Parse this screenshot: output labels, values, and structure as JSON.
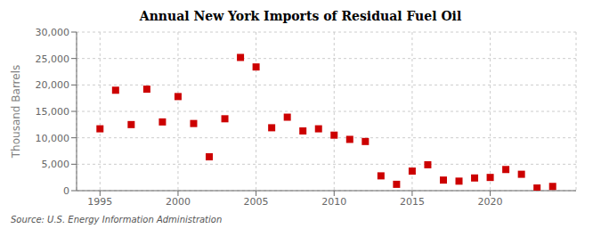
{
  "chart_data": {
    "type": "scatter",
    "title": "Annual New York Imports of Residual Fuel Oil",
    "ylabel": "Thousand Barrels",
    "annotations": [
      "Source: U.S. Energy Information Administration"
    ],
    "x": [
      1995,
      1996,
      1997,
      1998,
      1999,
      2000,
      2001,
      2002,
      2003,
      2004,
      2005,
      2006,
      2007,
      2008,
      2009,
      2010,
      2011,
      2012,
      2013,
      2014,
      2015,
      2016,
      2017,
      2018,
      2019,
      2020,
      2021,
      2022,
      2023,
      2024
    ],
    "values": [
      11700,
      19000,
      12500,
      19200,
      13000,
      17800,
      12700,
      6400,
      13600,
      25200,
      23400,
      11900,
      13900,
      11300,
      11700,
      10500,
      9700,
      9300,
      2800,
      1200,
      3700,
      4900,
      2000,
      1800,
      2400,
      2500,
      4000,
      3100,
      500,
      800
    ],
    "color": "#cc0000",
    "marker": "square",
    "grid": true,
    "xlim": [
      1993.5,
      2025.5
    ],
    "xticks": [
      1995,
      2000,
      2005,
      2010,
      2015,
      2020
    ],
    "ylim": [
      0,
      30000
    ],
    "yticks": [
      0,
      {
        "value": 5000,
        "label": "5,000"
      },
      {
        "value": 10000,
        "label": "10,000"
      },
      {
        "value": 15000,
        "label": "15,000"
      },
      {
        "value": 20000,
        "label": "20,000"
      },
      {
        "value": 25000,
        "label": "25,000"
      },
      {
        "value": 30000,
        "label": "30,000"
      }
    ]
  }
}
